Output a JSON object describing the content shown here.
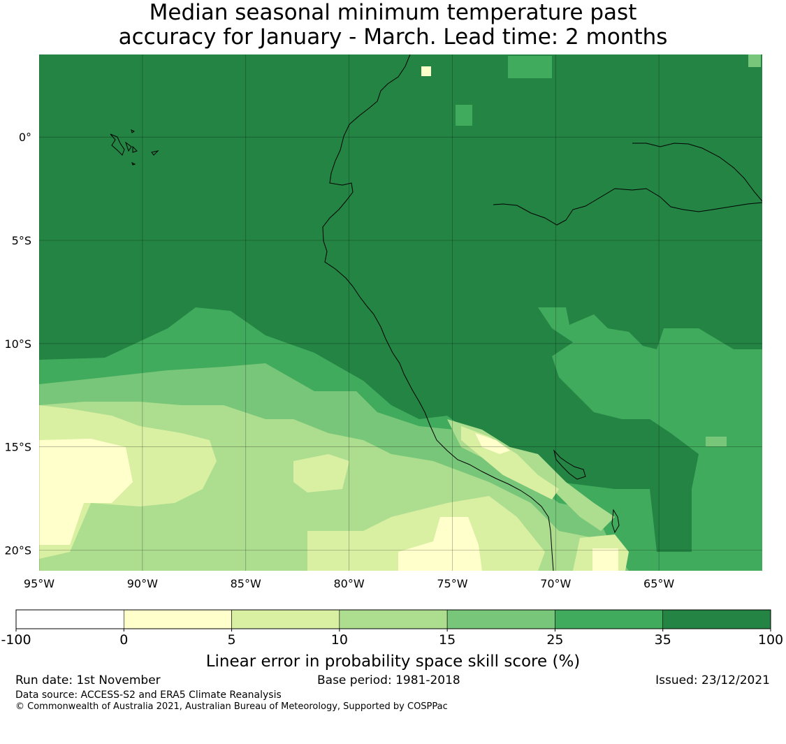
{
  "title": {
    "line1": "Median seasonal minimum temperature past",
    "line2": "accuracy for January - March. Lead time: 2 months"
  },
  "map": {
    "lon_range": [
      -95,
      -60
    ],
    "lat_range": [
      -21,
      4
    ],
    "grid": true,
    "x_ticks": [
      {
        "lon": -95,
        "label": "95°W"
      },
      {
        "lon": -90,
        "label": "90°W"
      },
      {
        "lon": -85,
        "label": "85°W"
      },
      {
        "lon": -80,
        "label": "80°W"
      },
      {
        "lon": -75,
        "label": "75°W"
      },
      {
        "lon": -70,
        "label": "70°W"
      },
      {
        "lon": -65,
        "label": "65°W"
      }
    ],
    "y_ticks": [
      {
        "lat": 0,
        "label": "0°"
      },
      {
        "lat": -5,
        "label": "5°S"
      },
      {
        "lat": -10,
        "label": "10°S"
      },
      {
        "lat": -15,
        "label": "15°S"
      },
      {
        "lat": -20,
        "label": "20°S"
      }
    ]
  },
  "colorbar": {
    "label": "Linear error in probability space skill score (%)",
    "bins": [
      {
        "from": -100,
        "to": 0,
        "color": "#ffffff"
      },
      {
        "from": 0,
        "to": 5,
        "color": "#ffffcc"
      },
      {
        "from": 5,
        "to": 10,
        "color": "#d9f0a3"
      },
      {
        "from": 10,
        "to": 15,
        "color": "#addd8e"
      },
      {
        "from": 15,
        "to": 25,
        "color": "#78c679"
      },
      {
        "from": 25,
        "to": 35,
        "color": "#41ab5d"
      },
      {
        "from": 35,
        "to": 100,
        "color": "#238443"
      }
    ],
    "tick_labels": [
      "-100",
      "0",
      "5",
      "10",
      "15",
      "25",
      "35",
      "100"
    ]
  },
  "footer": {
    "run_date": "Run date: 1st November",
    "base_period": "Base period: 1981-2018",
    "issued": "Issued: 23/12/2021",
    "data_source": "Data source: ACCESS-S2 and ERA5 Climate Reanalysis",
    "copyright": "© Commonwealth of Australia 2021, Australian Bureau of Meteorology, Supported by COSPPac"
  }
}
